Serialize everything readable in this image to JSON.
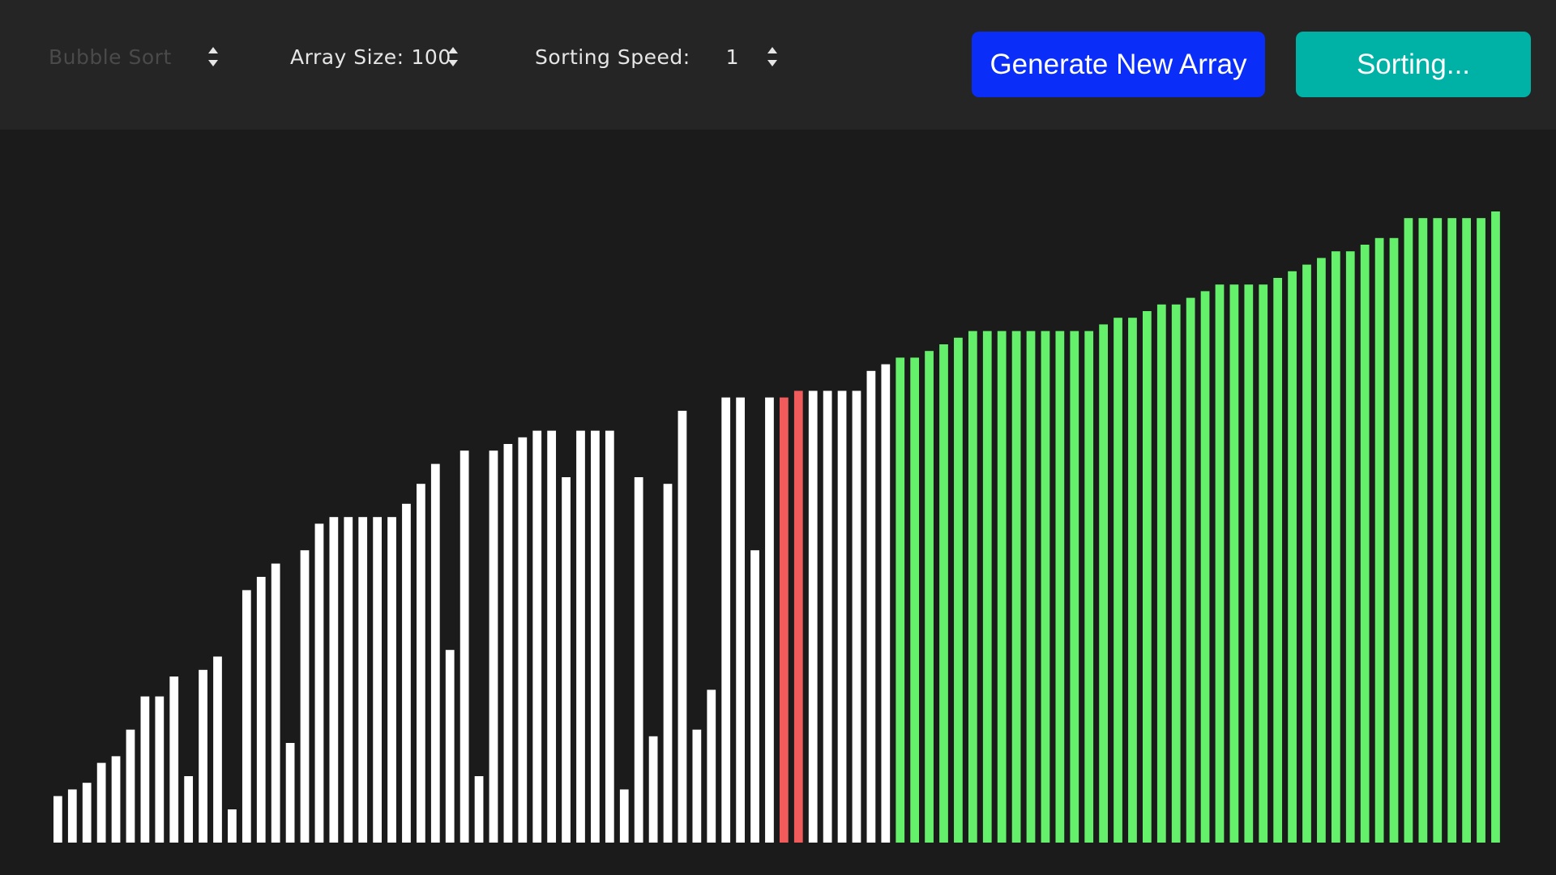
{
  "toolbar": {
    "algorithm": {
      "value": "Bubble Sort",
      "disabled": true
    },
    "array_size": {
      "label": "Array Size:",
      "value": "100"
    },
    "speed": {
      "label": "Sorting Speed:",
      "value": "1"
    },
    "generate_label": "Generate New Array",
    "sort_label": "Sorting..."
  },
  "colors": {
    "unsorted": "#ffffff",
    "comparing": "#f25b5b",
    "sorted": "#65f06c",
    "generate_button": "#0a2df7",
    "sort_button": "#00b2a6"
  },
  "chart_data": {
    "type": "bar",
    "description_of_scale": "bar heights in array value units",
    "ylim": [
      0,
      100
    ],
    "values": [
      7,
      8,
      9,
      12,
      13,
      17,
      22,
      22,
      25,
      10,
      26,
      28,
      5,
      38,
      40,
      42,
      15,
      44,
      48,
      49,
      49,
      49,
      49,
      49,
      51,
      54,
      57,
      29,
      59,
      10,
      59,
      60,
      61,
      62,
      62,
      55,
      62,
      62,
      62,
      8,
      55,
      16,
      54,
      65,
      17,
      23,
      67,
      67,
      44,
      67,
      67,
      68,
      68,
      68,
      68,
      68,
      71,
      72,
      73,
      73,
      74,
      75,
      76,
      77,
      77,
      77,
      77,
      77,
      77,
      77,
      77,
      77,
      78,
      79,
      79,
      80,
      81,
      81,
      82,
      83,
      84,
      84,
      84,
      84,
      85,
      86,
      87,
      88,
      89,
      89,
      90,
      91,
      91,
      94,
      94,
      94,
      94,
      94,
      94,
      95
    ],
    "states": [
      "u",
      "u",
      "u",
      "u",
      "u",
      "u",
      "u",
      "u",
      "u",
      "u",
      "u",
      "u",
      "u",
      "u",
      "u",
      "u",
      "u",
      "u",
      "u",
      "u",
      "u",
      "u",
      "u",
      "u",
      "u",
      "u",
      "u",
      "u",
      "u",
      "u",
      "u",
      "u",
      "u",
      "u",
      "u",
      "u",
      "u",
      "u",
      "u",
      "u",
      "u",
      "u",
      "u",
      "u",
      "u",
      "u",
      "u",
      "u",
      "u",
      "u",
      "c",
      "c",
      "u",
      "u",
      "u",
      "u",
      "u",
      "u",
      "s",
      "s",
      "s",
      "s",
      "s",
      "s",
      "s",
      "s",
      "s",
      "s",
      "s",
      "s",
      "s",
      "s",
      "s",
      "s",
      "s",
      "s",
      "s",
      "s",
      "s",
      "s",
      "s",
      "s",
      "s",
      "s",
      "s",
      "s",
      "s",
      "s",
      "s",
      "s",
      "s",
      "s",
      "s",
      "s",
      "s",
      "s",
      "s",
      "s",
      "s",
      "s"
    ]
  }
}
